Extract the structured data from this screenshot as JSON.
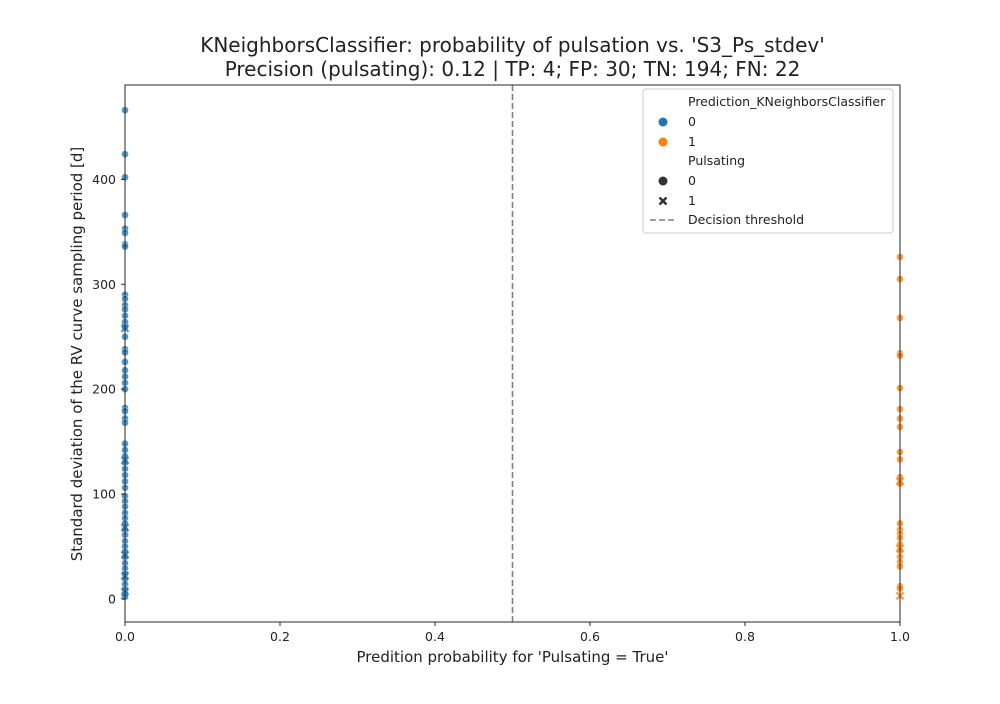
{
  "chart_data": {
    "type": "scatter",
    "title": "KNeighborsClassifier: probability of pulsation vs. 'S3_Ps_stdev'",
    "subtitle": "Precision (pulsating): 0.12 | TP: 4; FP: 30; TN: 194; FN: 22",
    "xlabel": "Predition probability for 'Pulsating = True'",
    "ylabel": "Standard deviation of the RV curve sampling period [d]",
    "xlim": [
      0.0,
      1.0
    ],
    "ylim": [
      -22,
      490
    ],
    "xticks": [
      0.0,
      0.2,
      0.4,
      0.6,
      0.8,
      1.0
    ],
    "xtick_labels": [
      "0.0",
      "0.2",
      "0.4",
      "0.6",
      "0.8",
      "1.0"
    ],
    "yticks": [
      0,
      100,
      200,
      300,
      400
    ],
    "ytick_labels": [
      "0",
      "100",
      "200",
      "300",
      "400"
    ],
    "grid": false,
    "threshold": {
      "x": 0.5,
      "label": "Decision threshold",
      "color": "#808080"
    },
    "legend": {
      "placement": "top-right",
      "hue_title": "Prediction_KNeighborsClassifier",
      "hue_entries": [
        {
          "label": "0",
          "color": "#1f77b4"
        },
        {
          "label": "1",
          "color": "#ff7f0e"
        }
      ],
      "style_title": "Pulsating",
      "style_entries": [
        {
          "label": "0",
          "marker": "circle"
        },
        {
          "label": "1",
          "marker": "x"
        }
      ]
    },
    "series": [
      {
        "prediction": "0",
        "color": "#1f77b4",
        "points": [
          {
            "x": 0,
            "y": 466,
            "pulsating": 0
          },
          {
            "x": 0,
            "y": 424,
            "pulsating": 0
          },
          {
            "x": 0,
            "y": 402,
            "pulsating": 0
          },
          {
            "x": 0,
            "y": 366,
            "pulsating": 0
          },
          {
            "x": 0,
            "y": 353,
            "pulsating": 0
          },
          {
            "x": 0,
            "y": 349,
            "pulsating": 0
          },
          {
            "x": 0,
            "y": 338,
            "pulsating": 0
          },
          {
            "x": 0,
            "y": 336,
            "pulsating": 0
          },
          {
            "x": 0,
            "y": 290,
            "pulsating": 0
          },
          {
            "x": 0,
            "y": 286,
            "pulsating": 0
          },
          {
            "x": 0,
            "y": 280,
            "pulsating": 0
          },
          {
            "x": 0,
            "y": 276,
            "pulsating": 0
          },
          {
            "x": 0,
            "y": 270,
            "pulsating": 0
          },
          {
            "x": 0,
            "y": 264,
            "pulsating": 0
          },
          {
            "x": 0,
            "y": 259,
            "pulsating": 0
          },
          {
            "x": 0,
            "y": 250,
            "pulsating": 0
          },
          {
            "x": 0,
            "y": 238,
            "pulsating": 0
          },
          {
            "x": 0,
            "y": 235,
            "pulsating": 0
          },
          {
            "x": 0,
            "y": 226,
            "pulsating": 0
          },
          {
            "x": 0,
            "y": 218,
            "pulsating": 0
          },
          {
            "x": 0,
            "y": 212,
            "pulsating": 0
          },
          {
            "x": 0,
            "y": 206,
            "pulsating": 0
          },
          {
            "x": 0,
            "y": 200,
            "pulsating": 0
          },
          {
            "x": 0,
            "y": 182,
            "pulsating": 0
          },
          {
            "x": 0,
            "y": 179,
            "pulsating": 0
          },
          {
            "x": 0,
            "y": 172,
            "pulsating": 0
          },
          {
            "x": 0,
            "y": 168,
            "pulsating": 0
          },
          {
            "x": 0,
            "y": 148,
            "pulsating": 0
          },
          {
            "x": 0,
            "y": 142,
            "pulsating": 0
          },
          {
            "x": 0,
            "y": 136,
            "pulsating": 0
          },
          {
            "x": 0,
            "y": 130,
            "pulsating": 0
          },
          {
            "x": 0,
            "y": 124,
            "pulsating": 0
          },
          {
            "x": 0,
            "y": 118,
            "pulsating": 0
          },
          {
            "x": 0,
            "y": 112,
            "pulsating": 0
          },
          {
            "x": 0,
            "y": 106,
            "pulsating": 0
          },
          {
            "x": 0,
            "y": 98,
            "pulsating": 0
          },
          {
            "x": 0,
            "y": 93,
            "pulsating": 0
          },
          {
            "x": 0,
            "y": 88,
            "pulsating": 0
          },
          {
            "x": 0,
            "y": 82,
            "pulsating": 0
          },
          {
            "x": 0,
            "y": 77,
            "pulsating": 0
          },
          {
            "x": 0,
            "y": 72,
            "pulsating": 0
          },
          {
            "x": 0,
            "y": 66,
            "pulsating": 0
          },
          {
            "x": 0,
            "y": 61,
            "pulsating": 0
          },
          {
            "x": 0,
            "y": 55,
            "pulsating": 0
          },
          {
            "x": 0,
            "y": 50,
            "pulsating": 0
          },
          {
            "x": 0,
            "y": 45,
            "pulsating": 0
          },
          {
            "x": 0,
            "y": 40,
            "pulsating": 0
          },
          {
            "x": 0,
            "y": 34,
            "pulsating": 0
          },
          {
            "x": 0,
            "y": 29,
            "pulsating": 0
          },
          {
            "x": 0,
            "y": 24,
            "pulsating": 0
          },
          {
            "x": 0,
            "y": 19,
            "pulsating": 0
          },
          {
            "x": 0,
            "y": 14,
            "pulsating": 0
          },
          {
            "x": 0,
            "y": 9,
            "pulsating": 0
          },
          {
            "x": 0,
            "y": 5,
            "pulsating": 0
          },
          {
            "x": 0,
            "y": 2,
            "pulsating": 0
          },
          {
            "x": 0,
            "y": 258,
            "pulsating": 1
          },
          {
            "x": 0,
            "y": 132,
            "pulsating": 1
          },
          {
            "x": 0,
            "y": 68,
            "pulsating": 1
          },
          {
            "x": 0,
            "y": 42,
            "pulsating": 1
          },
          {
            "x": 0,
            "y": 22,
            "pulsating": 1
          },
          {
            "x": 0,
            "y": 7,
            "pulsating": 1
          }
        ]
      },
      {
        "prediction": "1",
        "color": "#ff7f0e",
        "points": [
          {
            "x": 1,
            "y": 326,
            "pulsating": 0
          },
          {
            "x": 1,
            "y": 305,
            "pulsating": 0
          },
          {
            "x": 1,
            "y": 268,
            "pulsating": 0
          },
          {
            "x": 1,
            "y": 234,
            "pulsating": 0
          },
          {
            "x": 1,
            "y": 232,
            "pulsating": 0
          },
          {
            "x": 1,
            "y": 201,
            "pulsating": 0
          },
          {
            "x": 1,
            "y": 181,
            "pulsating": 0
          },
          {
            "x": 1,
            "y": 172,
            "pulsating": 0
          },
          {
            "x": 1,
            "y": 164,
            "pulsating": 0
          },
          {
            "x": 1,
            "y": 140,
            "pulsating": 0
          },
          {
            "x": 1,
            "y": 133,
            "pulsating": 0
          },
          {
            "x": 1,
            "y": 116,
            "pulsating": 0
          },
          {
            "x": 1,
            "y": 110,
            "pulsating": 0
          },
          {
            "x": 1,
            "y": 72,
            "pulsating": 0
          },
          {
            "x": 1,
            "y": 66,
            "pulsating": 0
          },
          {
            "x": 1,
            "y": 62,
            "pulsating": 0
          },
          {
            "x": 1,
            "y": 58,
            "pulsating": 0
          },
          {
            "x": 1,
            "y": 52,
            "pulsating": 0
          },
          {
            "x": 1,
            "y": 46,
            "pulsating": 0
          },
          {
            "x": 1,
            "y": 40,
            "pulsating": 0
          },
          {
            "x": 1,
            "y": 35,
            "pulsating": 0
          },
          {
            "x": 1,
            "y": 31,
            "pulsating": 0
          },
          {
            "x": 1,
            "y": 12,
            "pulsating": 0
          },
          {
            "x": 1,
            "y": 10,
            "pulsating": 0
          },
          {
            "x": 1,
            "y": 112,
            "pulsating": 1
          },
          {
            "x": 1,
            "y": 48,
            "pulsating": 1
          },
          {
            "x": 1,
            "y": 3,
            "pulsating": 1
          }
        ]
      }
    ]
  }
}
